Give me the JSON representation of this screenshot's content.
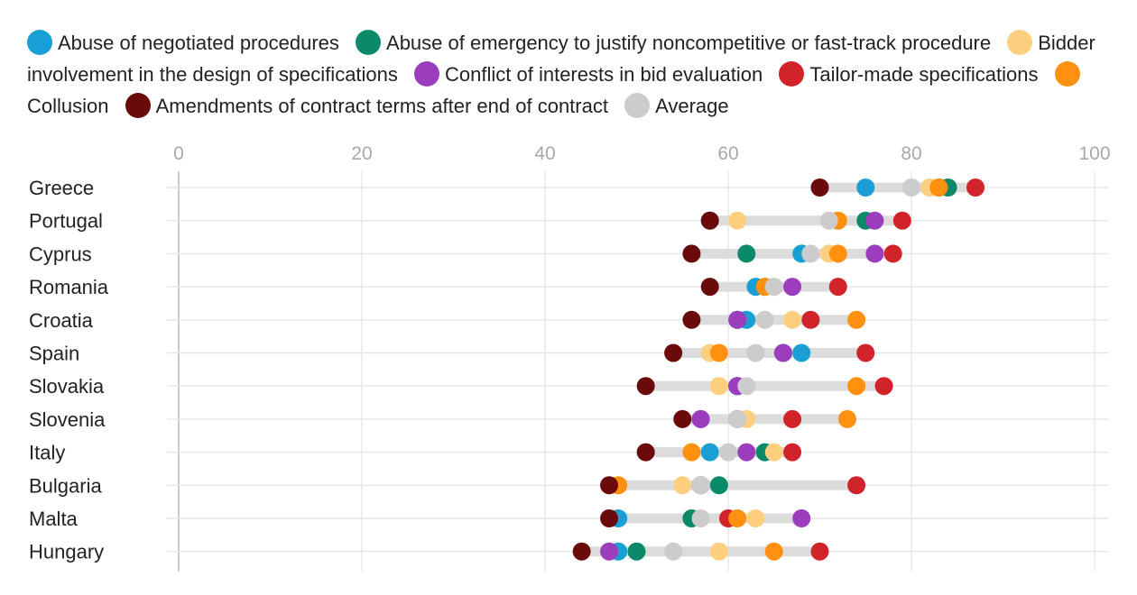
{
  "chart_data": {
    "type": "scatter",
    "subtype": "dot-plot",
    "title": "",
    "xlabel": "",
    "ylabel": "",
    "xlim": [
      0,
      100
    ],
    "xticks": [
      0,
      20,
      40,
      60,
      80,
      100
    ],
    "grid": true,
    "legend_position": "top",
    "categories": [
      "Greece",
      "Portugal",
      "Cyprus",
      "Romania",
      "Croatia",
      "Spain",
      "Slovakia",
      "Slovenia",
      "Italy",
      "Bulgaria",
      "Malta",
      "Hungary"
    ],
    "series": [
      {
        "name": "Abuse of negotiated procedures",
        "color": "#1a9fd4",
        "values": [
          75,
          58,
          68,
          63,
          62,
          68,
          61,
          57,
          58,
          57,
          48,
          48
        ]
      },
      {
        "name": "Abuse of emergency to justify noncompetitive or fast-track procedure",
        "color": "#0b8a6a",
        "values": [
          84,
          75,
          62,
          64,
          61,
          66,
          61,
          61,
          64,
          59,
          56,
          50
        ]
      },
      {
        "name": "Bidder involvement in the design of specifications",
        "color": "#ffcf80",
        "values": [
          82,
          61,
          71,
          65,
          67,
          58,
          59,
          62,
          65,
          55,
          63,
          59
        ]
      },
      {
        "name": "Conflict of interests in bid evaluation",
        "color": "#9b3dbd",
        "values": [
          83,
          76,
          76,
          67,
          61,
          66,
          61,
          57,
          62,
          57,
          68,
          47
        ]
      },
      {
        "name": "Tailor-made specifications",
        "color": "#d0232a",
        "values": [
          87,
          79,
          78,
          72,
          69,
          75,
          77,
          67,
          67,
          74,
          60,
          70
        ]
      },
      {
        "name": "Collusion",
        "color": "#ff9010",
        "values": [
          83,
          72,
          72,
          64,
          74,
          59,
          74,
          73,
          56,
          48,
          61,
          65
        ]
      },
      {
        "name": "Amendments of contract terms after end of contract",
        "color": "#6b0a0a",
        "values": [
          70,
          58,
          56,
          58,
          56,
          54,
          51,
          55,
          51,
          47,
          47,
          44
        ]
      },
      {
        "name": "Average",
        "color": "#cccccc",
        "values": [
          80,
          71,
          69,
          65,
          64,
          63,
          62,
          61,
          60,
          57,
          57,
          54
        ]
      }
    ]
  }
}
